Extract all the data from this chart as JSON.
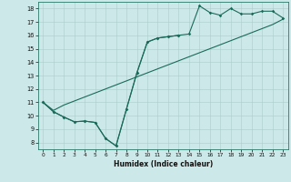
{
  "xlabel": "Humidex (Indice chaleur)",
  "bg_color": "#cce8e8",
  "line_color": "#1a6b5a",
  "xlim": [
    -0.5,
    23.5
  ],
  "ylim": [
    7.5,
    18.5
  ],
  "xticks": [
    0,
    1,
    2,
    3,
    4,
    5,
    6,
    7,
    8,
    9,
    10,
    11,
    12,
    13,
    14,
    15,
    16,
    17,
    18,
    19,
    20,
    21,
    22,
    23
  ],
  "yticks": [
    8,
    9,
    10,
    11,
    12,
    13,
    14,
    15,
    16,
    17,
    18
  ],
  "line1_x": [
    0,
    1,
    2,
    3,
    4,
    5,
    6,
    7,
    8,
    9,
    10,
    11,
    12,
    13
  ],
  "line1_y": [
    11.0,
    10.3,
    9.9,
    9.55,
    9.6,
    9.5,
    8.3,
    7.75,
    10.5,
    13.2,
    15.5,
    15.8,
    15.9,
    16.0
  ],
  "line2_x": [
    0,
    1,
    2,
    3,
    4,
    5,
    6,
    7,
    8,
    9,
    10,
    11,
    12,
    13,
    14,
    15,
    16,
    17,
    18,
    19,
    20,
    21,
    22,
    23
  ],
  "line2_y": [
    11.0,
    10.3,
    9.9,
    9.55,
    9.6,
    9.5,
    8.3,
    7.75,
    10.5,
    13.2,
    15.5,
    15.8,
    15.9,
    16.0,
    16.1,
    18.2,
    17.7,
    17.5,
    18.0,
    17.6,
    17.6,
    17.8,
    17.8,
    17.3
  ],
  "line3_x": [
    0,
    1,
    2,
    3,
    4,
    5,
    6,
    7,
    8,
    9,
    10,
    11,
    12,
    13,
    14,
    15,
    16,
    17,
    18,
    19,
    20,
    21,
    22,
    23
  ],
  "line3_y": [
    11.0,
    10.4,
    10.8,
    11.1,
    11.4,
    11.7,
    12.0,
    12.3,
    12.6,
    12.9,
    13.2,
    13.5,
    13.8,
    14.1,
    14.4,
    14.7,
    15.0,
    15.3,
    15.6,
    15.9,
    16.2,
    16.5,
    16.8,
    17.2
  ]
}
